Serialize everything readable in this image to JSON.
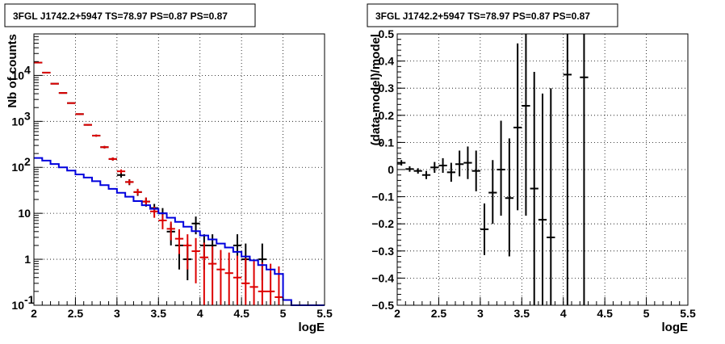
{
  "chart_data": [
    {
      "type": "scatter",
      "title": "3FGL J1742.2+5947 TS=78.97 PS=0.87 PS=0.87",
      "xlabel": "logE",
      "ylabel": "Nb of counts",
      "xlim": [
        2,
        5.5
      ],
      "ylim": [
        0.1,
        80000
      ],
      "yscale": "log",
      "grid": true,
      "x_ticks": [
        "2",
        "2.5",
        "3",
        "3.5",
        "4",
        "4.5",
        "5",
        "5.5"
      ],
      "y_ticks": [
        {
          "label": "10",
          "sup": "-1",
          "value": 0.1
        },
        {
          "label": "1",
          "sup": "",
          "value": 1
        },
        {
          "label": "10",
          "sup": "",
          "value": 10
        },
        {
          "label": "10",
          "sup": "2",
          "value": 100
        },
        {
          "label": "10",
          "sup": "3",
          "value": 1000
        },
        {
          "label": "10",
          "sup": "4",
          "value": 10000
        }
      ],
      "colors": {
        "data": "#000000",
        "model_counts": "#dd0000",
        "model_line": "#0000dd"
      },
      "series": [
        {
          "style": "points",
          "color": "#000000",
          "points": [
            {
              "x": 2.05,
              "y": 19000,
              "lo": 18800,
              "hi": 19200
            },
            {
              "x": 2.15,
              "y": 11500,
              "lo": 11300,
              "hi": 11700
            },
            {
              "x": 2.25,
              "y": 6600,
              "lo": 6450,
              "hi": 6750
            },
            {
              "x": 2.35,
              "y": 4150,
              "lo": 4050,
              "hi": 4250
            },
            {
              "x": 2.45,
              "y": 2500,
              "lo": 2430,
              "hi": 2570
            },
            {
              "x": 2.55,
              "y": 1440,
              "lo": 1390,
              "hi": 1490
            },
            {
              "x": 2.65,
              "y": 840,
              "lo": 810,
              "hi": 870
            },
            {
              "x": 2.75,
              "y": 490,
              "lo": 465,
              "hi": 515
            },
            {
              "x": 2.85,
              "y": 275,
              "lo": 258,
              "hi": 292
            },
            {
              "x": 2.95,
              "y": 152,
              "lo": 140,
              "hi": 164
            },
            {
              "x": 3.05,
              "y": 68,
              "lo": 60,
              "hi": 76
            },
            {
              "x": 3.15,
              "y": 48,
              "lo": 41,
              "hi": 55
            },
            {
              "x": 3.25,
              "y": 29,
              "lo": 24,
              "hi": 34
            },
            {
              "x": 3.35,
              "y": 18,
              "lo": 14,
              "hi": 22
            },
            {
              "x": 3.45,
              "y": 13,
              "lo": 10,
              "hi": 16
            },
            {
              "x": 3.55,
              "y": 10,
              "lo": 7,
              "hi": 13
            },
            {
              "x": 3.65,
              "y": 4,
              "lo": 2,
              "hi": 6
            },
            {
              "x": 3.75,
              "y": 2,
              "lo": 0.6,
              "hi": 3.5
            },
            {
              "x": 3.85,
              "y": 1,
              "lo": 0.35,
              "hi": 2.2
            },
            {
              "x": 3.95,
              "y": 6,
              "lo": 3.5,
              "hi": 8.5
            },
            {
              "x": 4.05,
              "y": 2,
              "lo": 0.6,
              "hi": 3.5
            },
            {
              "x": 4.15,
              "y": 2,
              "lo": 0.6,
              "hi": 3.5
            },
            {
              "x": 4.45,
              "y": 2,
              "lo": 0.6,
              "hi": 3.5
            },
            {
              "x": 4.55,
              "y": 1,
              "lo": 0.35,
              "hi": 2.2
            },
            {
              "x": 4.75,
              "y": 1,
              "lo": 0.35,
              "hi": 2.2
            }
          ]
        },
        {
          "style": "points",
          "color": "#dd0000",
          "points": [
            {
              "x": 2.05,
              "y": 19000,
              "lo": 18800,
              "hi": 19200
            },
            {
              "x": 2.15,
              "y": 11500,
              "lo": 11300,
              "hi": 11700
            },
            {
              "x": 2.25,
              "y": 6600,
              "lo": 6450,
              "hi": 6750
            },
            {
              "x": 2.35,
              "y": 4150,
              "lo": 4050,
              "hi": 4250
            },
            {
              "x": 2.45,
              "y": 2500,
              "lo": 2430,
              "hi": 2570
            },
            {
              "x": 2.55,
              "y": 1440,
              "lo": 1390,
              "hi": 1490
            },
            {
              "x": 2.65,
              "y": 840,
              "lo": 810,
              "hi": 870
            },
            {
              "x": 2.75,
              "y": 490,
              "lo": 465,
              "hi": 515
            },
            {
              "x": 2.85,
              "y": 275,
              "lo": 258,
              "hi": 292
            },
            {
              "x": 2.95,
              "y": 152,
              "lo": 140,
              "hi": 164
            },
            {
              "x": 3.05,
              "y": 82,
              "lo": 74,
              "hi": 90
            },
            {
              "x": 3.15,
              "y": 48,
              "lo": 42,
              "hi": 54
            },
            {
              "x": 3.25,
              "y": 29,
              "lo": 25,
              "hi": 34
            },
            {
              "x": 3.35,
              "y": 18,
              "lo": 14.5,
              "hi": 22
            },
            {
              "x": 3.45,
              "y": 11,
              "lo": 8,
              "hi": 14
            },
            {
              "x": 3.55,
              "y": 7,
              "lo": 4.5,
              "hi": 9.5
            },
            {
              "x": 3.65,
              "y": 4.6,
              "lo": 2.6,
              "hi": 6.6
            },
            {
              "x": 3.75,
              "y": 2.8,
              "lo": 1.3,
              "hi": 4.5
            },
            {
              "x": 3.85,
              "y": 2.0,
              "lo": 0.6,
              "hi": 3.5
            },
            {
              "x": 3.95,
              "y": 1.5,
              "lo": 0.3,
              "hi": 2.9
            },
            {
              "x": 4.05,
              "y": 1.1,
              "lo": 0.1,
              "hi": 2.3
            },
            {
              "x": 4.15,
              "y": 0.8,
              "lo": 0.1,
              "hi": 1.9
            },
            {
              "x": 4.25,
              "y": 0.6,
              "lo": 0.1,
              "hi": 1.6
            },
            {
              "x": 4.35,
              "y": 0.5,
              "lo": 0.1,
              "hi": 1.4
            },
            {
              "x": 4.45,
              "y": 0.4,
              "lo": 0.1,
              "hi": 1.2
            },
            {
              "x": 4.55,
              "y": 0.3,
              "lo": 0.1,
              "hi": 1.05
            },
            {
              "x": 4.65,
              "y": 0.25,
              "lo": 0.1,
              "hi": 0.95
            },
            {
              "x": 4.75,
              "y": 0.2,
              "lo": 0.1,
              "hi": 0.85
            },
            {
              "x": 4.85,
              "y": 0.2,
              "lo": 0.1,
              "hi": 0.8
            },
            {
              "x": 4.95,
              "y": 0.15,
              "lo": 0.1,
              "hi": 0.7
            }
          ]
        },
        {
          "style": "step",
          "color": "#0000dd",
          "edges": [
            2.0,
            2.1,
            2.2,
            2.3,
            2.4,
            2.5,
            2.6,
            2.7,
            2.8,
            2.9,
            3.0,
            3.1,
            3.2,
            3.3,
            3.4,
            3.5,
            3.6,
            3.7,
            3.8,
            3.9,
            4.0,
            4.1,
            4.2,
            4.3,
            4.4,
            4.5,
            4.6,
            4.7,
            4.8,
            4.9,
            5.0,
            5.1,
            5.2,
            5.3,
            5.4,
            5.5
          ],
          "values": [
            160,
            140,
            118,
            100,
            85,
            70,
            60,
            50,
            41,
            34,
            28,
            23,
            18.5,
            15,
            12.5,
            10,
            8,
            6.5,
            5.1,
            4.1,
            3.3,
            2.7,
            2.2,
            1.8,
            1.45,
            1.15,
            0.95,
            0.75,
            0.6,
            0.48,
            0.13,
            0.1,
            0.1,
            0.1,
            0.1
          ]
        }
      ]
    },
    {
      "type": "scatter",
      "title": "3FGL J1742.2+5947 TS=78.97 PS=0.87 PS=0.87",
      "xlabel": "logE",
      "ylabel": "(data-model)/model",
      "xlim": [
        2,
        5.5
      ],
      "ylim": [
        -0.5,
        0.5
      ],
      "grid": true,
      "x_ticks": [
        "2",
        "2.5",
        "3",
        "3.5",
        "4",
        "4.5",
        "5",
        "5.5"
      ],
      "y_ticks": [
        "−0.5",
        "−0.4",
        "−0.3",
        "−0.2",
        "−0.1",
        "0",
        "0.1",
        "0.2",
        "0.3",
        "0.4",
        "0.5"
      ],
      "series": [
        {
          "style": "points",
          "color": "#000000",
          "points": [
            {
              "x": 2.05,
              "y": 0.025,
              "lo": 0.015,
              "hi": 0.035
            },
            {
              "x": 2.15,
              "y": 0.002,
              "lo": -0.008,
              "hi": 0.012
            },
            {
              "x": 2.25,
              "y": -0.005,
              "lo": -0.015,
              "hi": 0.005
            },
            {
              "x": 2.35,
              "y": -0.02,
              "lo": -0.035,
              "hi": -0.005
            },
            {
              "x": 2.45,
              "y": 0.008,
              "lo": -0.012,
              "hi": 0.028
            },
            {
              "x": 2.55,
              "y": 0.015,
              "lo": -0.012,
              "hi": 0.042
            },
            {
              "x": 2.65,
              "y": -0.01,
              "lo": -0.045,
              "hi": 0.025
            },
            {
              "x": 2.75,
              "y": 0.02,
              "lo": -0.025,
              "hi": 0.07
            },
            {
              "x": 2.85,
              "y": 0.025,
              "lo": -0.035,
              "hi": 0.085
            },
            {
              "x": 2.95,
              "y": -0.005,
              "lo": -0.08,
              "hi": 0.07
            },
            {
              "x": 3.05,
              "y": -0.22,
              "lo": -0.315,
              "hi": -0.125
            },
            {
              "x": 3.15,
              "y": -0.085,
              "lo": -0.2,
              "hi": 0.035
            },
            {
              "x": 3.25,
              "y": 0.0,
              "lo": -0.17,
              "hi": 0.18
            },
            {
              "x": 3.35,
              "y": -0.105,
              "lo": -0.32,
              "hi": 0.115
            },
            {
              "x": 3.45,
              "y": 0.155,
              "lo": -0.15,
              "hi": 0.465
            },
            {
              "x": 3.55,
              "y": 0.235,
              "lo": -0.17,
              "hi": 0.64
            },
            {
              "x": 3.65,
              "y": -0.07,
              "lo": -0.5,
              "hi": 0.36
            },
            {
              "x": 3.75,
              "y": -0.185,
              "lo": -0.65,
              "hi": 0.28
            },
            {
              "x": 3.85,
              "y": -0.25,
              "lo": -0.8,
              "hi": 0.3
            },
            {
              "x": 4.05,
              "y": 0.35,
              "lo": -0.5,
              "hi": 1.2
            },
            {
              "x": 4.25,
              "y": 0.34,
              "lo": -0.5,
              "hi": 1.2
            }
          ]
        }
      ]
    }
  ]
}
